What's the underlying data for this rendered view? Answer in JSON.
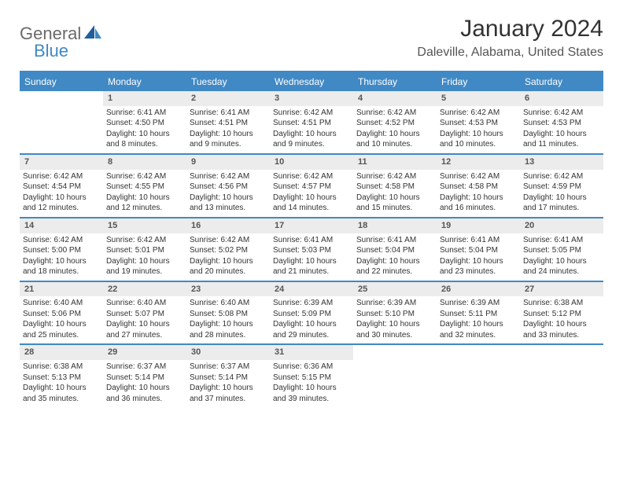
{
  "logo": {
    "general": "General",
    "blue": "Blue"
  },
  "title": "January 2024",
  "location": "Daleville, Alabama, United States",
  "colors": {
    "accent": "#4089c5",
    "header_bg": "#4089c5",
    "daynum_bg": "#ececec",
    "text": "#333333",
    "logo_gray": "#6a6a6a"
  },
  "days_of_week": [
    "Sunday",
    "Monday",
    "Tuesday",
    "Wednesday",
    "Thursday",
    "Friday",
    "Saturday"
  ],
  "weeks": [
    [
      {
        "n": "",
        "sunrise": "",
        "sunset": "",
        "daylight": ""
      },
      {
        "n": "1",
        "sunrise": "Sunrise: 6:41 AM",
        "sunset": "Sunset: 4:50 PM",
        "daylight": "Daylight: 10 hours and 8 minutes."
      },
      {
        "n": "2",
        "sunrise": "Sunrise: 6:41 AM",
        "sunset": "Sunset: 4:51 PM",
        "daylight": "Daylight: 10 hours and 9 minutes."
      },
      {
        "n": "3",
        "sunrise": "Sunrise: 6:42 AM",
        "sunset": "Sunset: 4:51 PM",
        "daylight": "Daylight: 10 hours and 9 minutes."
      },
      {
        "n": "4",
        "sunrise": "Sunrise: 6:42 AM",
        "sunset": "Sunset: 4:52 PM",
        "daylight": "Daylight: 10 hours and 10 minutes."
      },
      {
        "n": "5",
        "sunrise": "Sunrise: 6:42 AM",
        "sunset": "Sunset: 4:53 PM",
        "daylight": "Daylight: 10 hours and 10 minutes."
      },
      {
        "n": "6",
        "sunrise": "Sunrise: 6:42 AM",
        "sunset": "Sunset: 4:53 PM",
        "daylight": "Daylight: 10 hours and 11 minutes."
      }
    ],
    [
      {
        "n": "7",
        "sunrise": "Sunrise: 6:42 AM",
        "sunset": "Sunset: 4:54 PM",
        "daylight": "Daylight: 10 hours and 12 minutes."
      },
      {
        "n": "8",
        "sunrise": "Sunrise: 6:42 AM",
        "sunset": "Sunset: 4:55 PM",
        "daylight": "Daylight: 10 hours and 12 minutes."
      },
      {
        "n": "9",
        "sunrise": "Sunrise: 6:42 AM",
        "sunset": "Sunset: 4:56 PM",
        "daylight": "Daylight: 10 hours and 13 minutes."
      },
      {
        "n": "10",
        "sunrise": "Sunrise: 6:42 AM",
        "sunset": "Sunset: 4:57 PM",
        "daylight": "Daylight: 10 hours and 14 minutes."
      },
      {
        "n": "11",
        "sunrise": "Sunrise: 6:42 AM",
        "sunset": "Sunset: 4:58 PM",
        "daylight": "Daylight: 10 hours and 15 minutes."
      },
      {
        "n": "12",
        "sunrise": "Sunrise: 6:42 AM",
        "sunset": "Sunset: 4:58 PM",
        "daylight": "Daylight: 10 hours and 16 minutes."
      },
      {
        "n": "13",
        "sunrise": "Sunrise: 6:42 AM",
        "sunset": "Sunset: 4:59 PM",
        "daylight": "Daylight: 10 hours and 17 minutes."
      }
    ],
    [
      {
        "n": "14",
        "sunrise": "Sunrise: 6:42 AM",
        "sunset": "Sunset: 5:00 PM",
        "daylight": "Daylight: 10 hours and 18 minutes."
      },
      {
        "n": "15",
        "sunrise": "Sunrise: 6:42 AM",
        "sunset": "Sunset: 5:01 PM",
        "daylight": "Daylight: 10 hours and 19 minutes."
      },
      {
        "n": "16",
        "sunrise": "Sunrise: 6:42 AM",
        "sunset": "Sunset: 5:02 PM",
        "daylight": "Daylight: 10 hours and 20 minutes."
      },
      {
        "n": "17",
        "sunrise": "Sunrise: 6:41 AM",
        "sunset": "Sunset: 5:03 PM",
        "daylight": "Daylight: 10 hours and 21 minutes."
      },
      {
        "n": "18",
        "sunrise": "Sunrise: 6:41 AM",
        "sunset": "Sunset: 5:04 PM",
        "daylight": "Daylight: 10 hours and 22 minutes."
      },
      {
        "n": "19",
        "sunrise": "Sunrise: 6:41 AM",
        "sunset": "Sunset: 5:04 PM",
        "daylight": "Daylight: 10 hours and 23 minutes."
      },
      {
        "n": "20",
        "sunrise": "Sunrise: 6:41 AM",
        "sunset": "Sunset: 5:05 PM",
        "daylight": "Daylight: 10 hours and 24 minutes."
      }
    ],
    [
      {
        "n": "21",
        "sunrise": "Sunrise: 6:40 AM",
        "sunset": "Sunset: 5:06 PM",
        "daylight": "Daylight: 10 hours and 25 minutes."
      },
      {
        "n": "22",
        "sunrise": "Sunrise: 6:40 AM",
        "sunset": "Sunset: 5:07 PM",
        "daylight": "Daylight: 10 hours and 27 minutes."
      },
      {
        "n": "23",
        "sunrise": "Sunrise: 6:40 AM",
        "sunset": "Sunset: 5:08 PM",
        "daylight": "Daylight: 10 hours and 28 minutes."
      },
      {
        "n": "24",
        "sunrise": "Sunrise: 6:39 AM",
        "sunset": "Sunset: 5:09 PM",
        "daylight": "Daylight: 10 hours and 29 minutes."
      },
      {
        "n": "25",
        "sunrise": "Sunrise: 6:39 AM",
        "sunset": "Sunset: 5:10 PM",
        "daylight": "Daylight: 10 hours and 30 minutes."
      },
      {
        "n": "26",
        "sunrise": "Sunrise: 6:39 AM",
        "sunset": "Sunset: 5:11 PM",
        "daylight": "Daylight: 10 hours and 32 minutes."
      },
      {
        "n": "27",
        "sunrise": "Sunrise: 6:38 AM",
        "sunset": "Sunset: 5:12 PM",
        "daylight": "Daylight: 10 hours and 33 minutes."
      }
    ],
    [
      {
        "n": "28",
        "sunrise": "Sunrise: 6:38 AM",
        "sunset": "Sunset: 5:13 PM",
        "daylight": "Daylight: 10 hours and 35 minutes."
      },
      {
        "n": "29",
        "sunrise": "Sunrise: 6:37 AM",
        "sunset": "Sunset: 5:14 PM",
        "daylight": "Daylight: 10 hours and 36 minutes."
      },
      {
        "n": "30",
        "sunrise": "Sunrise: 6:37 AM",
        "sunset": "Sunset: 5:14 PM",
        "daylight": "Daylight: 10 hours and 37 minutes."
      },
      {
        "n": "31",
        "sunrise": "Sunrise: 6:36 AM",
        "sunset": "Sunset: 5:15 PM",
        "daylight": "Daylight: 10 hours and 39 minutes."
      },
      {
        "n": "",
        "sunrise": "",
        "sunset": "",
        "daylight": ""
      },
      {
        "n": "",
        "sunrise": "",
        "sunset": "",
        "daylight": ""
      },
      {
        "n": "",
        "sunrise": "",
        "sunset": "",
        "daylight": ""
      }
    ]
  ]
}
